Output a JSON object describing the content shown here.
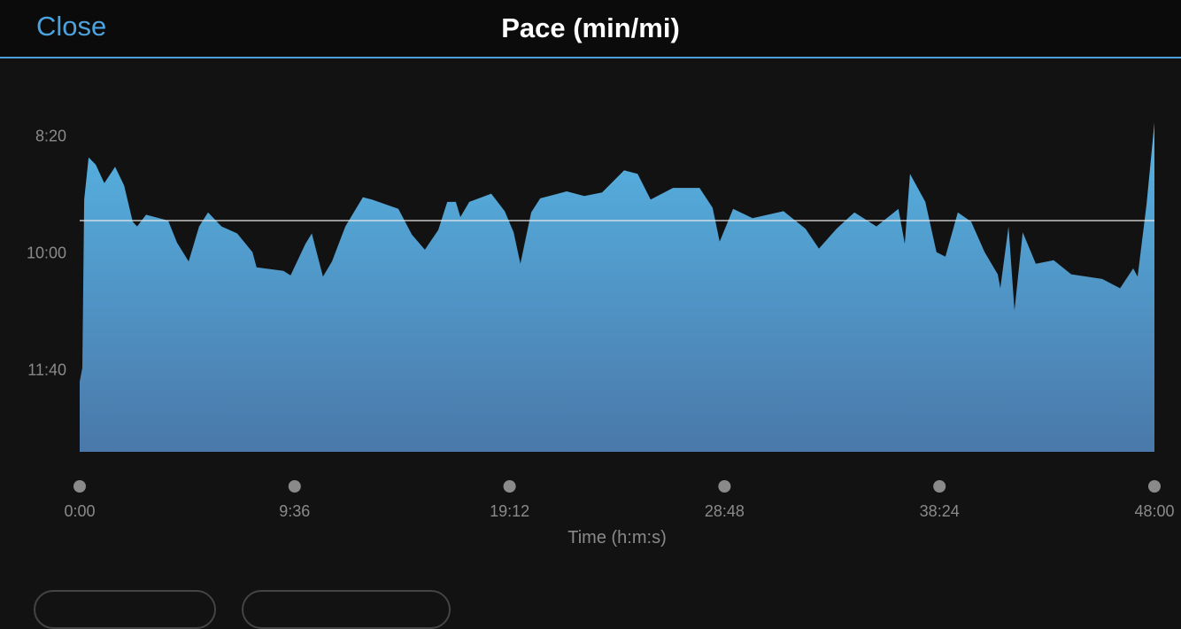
{
  "header": {
    "close_label": "Close",
    "title": "Pace (min/mi)"
  },
  "colors": {
    "accent": "#4aa3df",
    "fill_top": "#56b4e3",
    "fill_bottom": "#4a78aa",
    "average_line": "#e8e8e8",
    "tick_text": "#8a8a8a"
  },
  "chart_data": {
    "type": "area",
    "title": "Pace (min/mi)",
    "xlabel": "Time (h:m:s)",
    "ylabel": "",
    "x_ticks": [
      "0:00",
      "9:36",
      "19:12",
      "28:48",
      "38:24",
      "48:00"
    ],
    "y_ticks": [
      "8:20",
      "10:00",
      "11:40"
    ],
    "y_inverted": true,
    "xlim": [
      "0:00",
      "48:00"
    ],
    "ylim": [
      "7:40",
      "12:51"
    ],
    "average_line": "9:33",
    "grid": false,
    "series": [
      {
        "x": [
          "0:00",
          "0:07",
          "0:12",
          "0:24",
          "0:43",
          "1:06",
          "1:35",
          "1:59",
          "2:22",
          "2:34",
          "2:58",
          "3:57",
          "4:21",
          "4:52",
          "5:20",
          "5:44",
          "6:20",
          "7:02",
          "7:43",
          "7:54",
          "9:06",
          "9:25",
          "10:05",
          "10:22",
          "10:52",
          "11:16",
          "11:52",
          "12:39",
          "13:03",
          "14:14",
          "14:50",
          "15:25",
          "16:01",
          "16:25",
          "16:48",
          "17:00",
          "17:24",
          "18:23",
          "18:59",
          "19:23",
          "19:41",
          "20:10",
          "20:34",
          "21:45",
          "22:32",
          "23:20",
          "24:19",
          "24:55",
          "25:30",
          "26:30",
          "27:41",
          "28:16",
          "28:35",
          "29:11",
          "30:03",
          "31:26",
          "32:25",
          "33:01",
          "33:48",
          "34:36",
          "35:35",
          "36:34",
          "36:51",
          "37:05",
          "37:46",
          "38:16",
          "38:40",
          "39:13",
          "39:49",
          "40:25",
          "41:00",
          "41:07",
          "41:29",
          "41:45",
          "42:07",
          "42:42",
          "43:30",
          "44:17",
          "45:40",
          "46:28",
          "47:03",
          "47:15",
          "47:39",
          "48:00"
        ],
        "y": [
          "11:51",
          "11:39",
          "9:15",
          "8:39",
          "8:45",
          "9:01",
          "8:47",
          "9:03",
          "9:34",
          "9:38",
          "9:28",
          "9:33",
          "9:52",
          "10:08",
          "9:38",
          "9:26",
          "9:38",
          "9:44",
          "10:00",
          "10:13",
          "10:16",
          "10:20",
          "9:53",
          "9:44",
          "10:21",
          "10:08",
          "9:38",
          "9:13",
          "9:15",
          "9:23",
          "9:45",
          "9:58",
          "9:41",
          "9:17",
          "9:17",
          "9:30",
          "9:17",
          "9:10",
          "9:25",
          "9:43",
          "10:10",
          "9:26",
          "9:14",
          "9:08",
          "9:12",
          "9:09",
          "8:50",
          "8:53",
          "9:15",
          "9:05",
          "9:05",
          "9:22",
          "9:51",
          "9:23",
          "9:31",
          "9:25",
          "9:40",
          "9:57",
          "9:40",
          "9:26",
          "9:38",
          "9:23",
          "9:53",
          "8:53",
          "9:17",
          "10:00",
          "10:04",
          "9:26",
          "9:34",
          "10:00",
          "10:19",
          "10:31",
          "9:38",
          "10:50",
          "9:43",
          "10:10",
          "10:07",
          "10:19",
          "10:23",
          "10:31",
          "10:14",
          "10:21",
          "9:19",
          "8:09"
        ]
      }
    ]
  },
  "footer": {
    "buttons": [
      "",
      ""
    ]
  }
}
